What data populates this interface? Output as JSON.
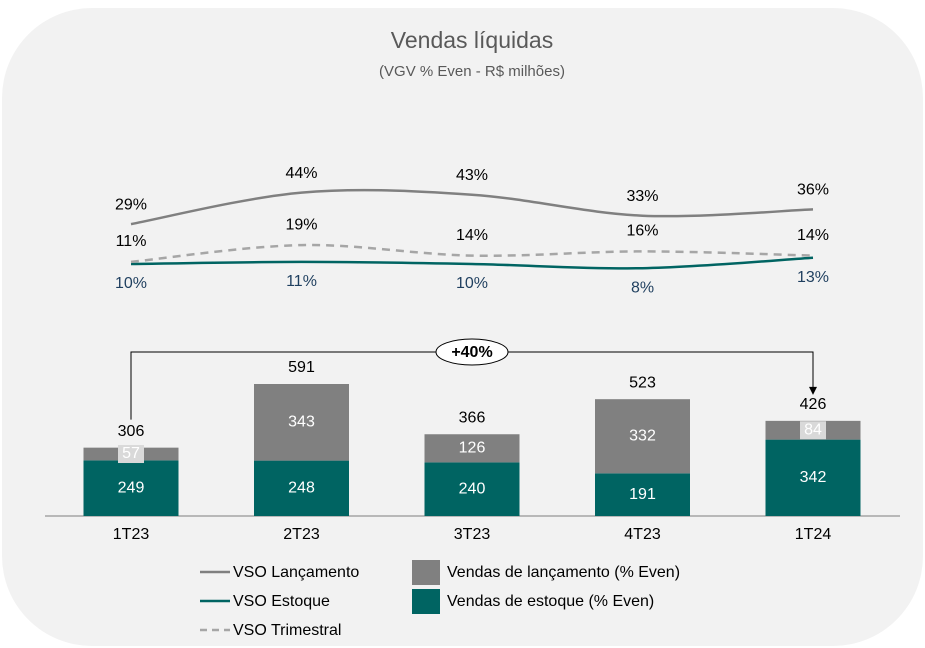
{
  "chart_data": {
    "type": "bar",
    "title": "Vendas líquidas",
    "subtitle": "(VGV % Even - R$ milhões)",
    "categories": [
      "1T23",
      "2T23",
      "3T23",
      "4T23",
      "1T24"
    ],
    "series": [
      {
        "name": "Vendas de estoque (% Even)",
        "type": "bar",
        "color": "#006462",
        "values": [
          249,
          248,
          240,
          191,
          342
        ]
      },
      {
        "name": "Vendas de lançamento (% Even)",
        "type": "bar",
        "color": "#808080",
        "values": [
          57,
          343,
          126,
          332,
          84
        ]
      },
      {
        "name": "VSO Lançamento",
        "type": "line",
        "color": "#808080",
        "values": [
          29,
          44,
          43,
          33,
          36
        ],
        "value_labels": [
          "29%",
          "44%",
          "43%",
          "33%",
          "36%"
        ]
      },
      {
        "name": "VSO Estoque",
        "type": "line",
        "color": "#006462",
        "label_color": "#1f3f5f",
        "values": [
          10,
          11,
          10,
          8,
          13
        ],
        "value_labels": [
          "10%",
          "11%",
          "10%",
          "8%",
          "13%"
        ]
      },
      {
        "name": "VSO Trimestral",
        "type": "line",
        "color": "#a6a6a6",
        "dash": true,
        "values": [
          11,
          19,
          14,
          16,
          14
        ],
        "value_labels": [
          "11%",
          "19%",
          "14%",
          "16%",
          "14%"
        ]
      }
    ],
    "totals": [
      306,
      591,
      366,
      523,
      426
    ],
    "annotation": "+40%"
  }
}
